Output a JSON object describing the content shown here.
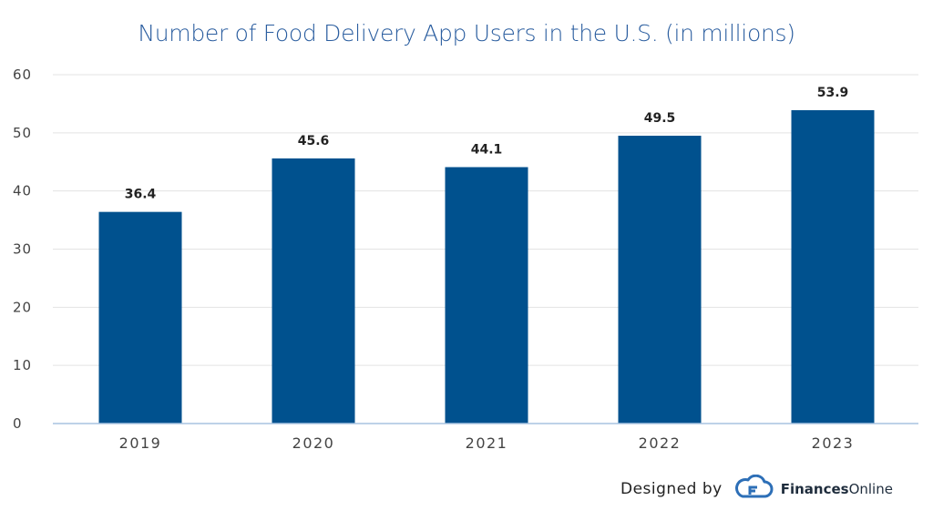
{
  "chart_data": {
    "type": "bar",
    "title": "Number of Food Delivery App Users in the U.S. (in millions)",
    "categories": [
      "2019",
      "2020",
      "2021",
      "2022",
      "2023"
    ],
    "values": [
      36.4,
      45.6,
      44.1,
      49.5,
      53.9
    ],
    "value_labels": [
      "36.4",
      "45.6",
      "44.1",
      "49.5",
      "53.9"
    ],
    "y_ticks": [
      "0",
      "10",
      "20",
      "30",
      "40",
      "50",
      "60"
    ],
    "ylim": [
      0,
      60
    ],
    "xlabel": "",
    "ylabel": "",
    "grid": true,
    "bar_color": "#00518e",
    "grid_color": "#e3e3e3",
    "axis_color": "#a9c4e0"
  },
  "footer": {
    "designed_by": "Designed by",
    "brand_bold": "Finances",
    "brand_light": "Online",
    "logo_icon": "cloud-f-logo-icon",
    "logo_color": "#2d6fb7"
  }
}
